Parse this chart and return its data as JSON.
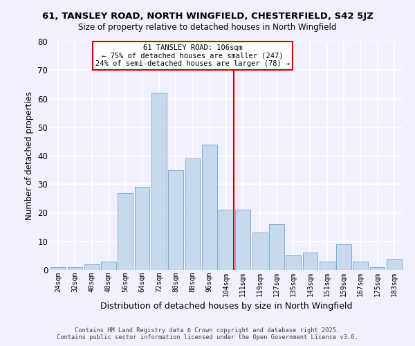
{
  "title1": "61, TANSLEY ROAD, NORTH WINGFIELD, CHESTERFIELD, S42 5JZ",
  "title2": "Size of property relative to detached houses in North Wingfield",
  "xlabel": "Distribution of detached houses by size in North Wingfield",
  "ylabel": "Number of detached properties",
  "bins": [
    "24sqm",
    "32sqm",
    "40sqm",
    "48sqm",
    "56sqm",
    "64sqm",
    "72sqm",
    "80sqm",
    "88sqm",
    "96sqm",
    "104sqm",
    "111sqm",
    "119sqm",
    "127sqm",
    "135sqm",
    "143sqm",
    "151sqm",
    "159sqm",
    "167sqm",
    "175sqm",
    "183sqm"
  ],
  "values": [
    1,
    1,
    2,
    3,
    27,
    29,
    62,
    35,
    39,
    44,
    21,
    21,
    13,
    16,
    5,
    6,
    3,
    9,
    3,
    1,
    4
  ],
  "bar_color": "#c8d9ee",
  "bar_edge_color": "#7bafd4",
  "vline_x_index": 10,
  "vline_color": "#cc0000",
  "annotation_title": "61 TANSLEY ROAD: 106sqm",
  "annotation_line1": "← 75% of detached houses are smaller (247)",
  "annotation_line2": "24% of semi-detached houses are larger (78) →",
  "annotation_box_color": "#ffffff",
  "annotation_box_edge": "#cc0000",
  "ylim": [
    0,
    80
  ],
  "yticks": [
    0,
    10,
    20,
    30,
    40,
    50,
    60,
    70,
    80
  ],
  "footer1": "Contains HM Land Registry data © Crown copyright and database right 2025.",
  "footer2": "Contains public sector information licensed under the Open Government Licence v3.0.",
  "bg_color": "#f0f0ff"
}
